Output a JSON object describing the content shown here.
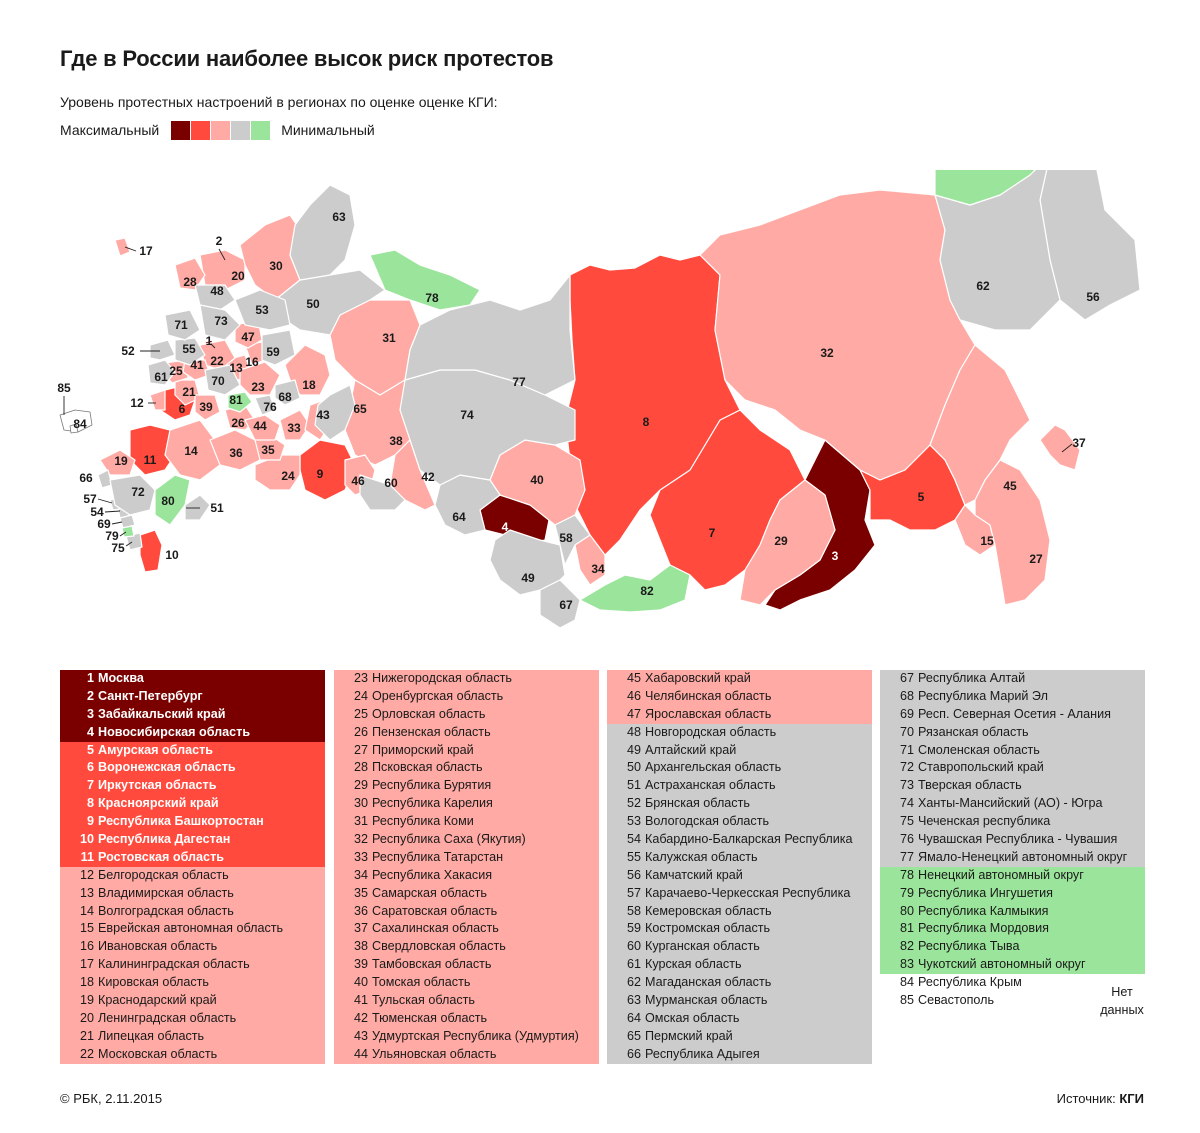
{
  "title": "Где в России наиболее высок риск протестов",
  "subtitle": "Уровень протестных настроений в регионах по оценке оценке КГИ:",
  "legend": {
    "max_label": "Максимальный",
    "min_label": "Минимальный",
    "colors": [
      "#7a0000",
      "#ff4a3d",
      "#ffaaa4",
      "#cccccc",
      "#9be49b"
    ]
  },
  "colors": {
    "level1": "#7a0000",
    "level2": "#ff4a3d",
    "level3": "#ffaaa4",
    "level4": "#cccccc",
    "level5": "#9be49b",
    "nodata": "#ffffff"
  },
  "regions": [
    {
      "num": "1",
      "name": "Москва",
      "level": 1
    },
    {
      "num": "2",
      "name": "Санкт-Петербург",
      "level": 1
    },
    {
      "num": "3",
      "name": "Забайкальский край",
      "level": 1
    },
    {
      "num": "4",
      "name": "Новосибирская область",
      "level": 1
    },
    {
      "num": "5",
      "name": "Амурская область",
      "level": 2
    },
    {
      "num": "6",
      "name": "Воронежская область",
      "level": 2
    },
    {
      "num": "7",
      "name": "Иркутская область",
      "level": 2
    },
    {
      "num": "8",
      "name": "Красноярский край",
      "level": 2
    },
    {
      "num": "9",
      "name": "Республика Башкортостан",
      "level": 2
    },
    {
      "num": "10",
      "name": "Республика Дагестан",
      "level": 2
    },
    {
      "num": "11",
      "name": "Ростовская область",
      "level": 2
    },
    {
      "num": "12",
      "name": "Белгородская область",
      "level": 3
    },
    {
      "num": "13",
      "name": "Владимирская область",
      "level": 3
    },
    {
      "num": "14",
      "name": "Волгоградская область",
      "level": 3
    },
    {
      "num": "15",
      "name": "Еврейская автономная область",
      "level": 3
    },
    {
      "num": "16",
      "name": "Ивановская область",
      "level": 3
    },
    {
      "num": "17",
      "name": "Калининградская область",
      "level": 3
    },
    {
      "num": "18",
      "name": "Кировская область",
      "level": 3
    },
    {
      "num": "19",
      "name": "Краснодарский край",
      "level": 3
    },
    {
      "num": "20",
      "name": "Ленинградская область",
      "level": 3
    },
    {
      "num": "21",
      "name": "Липецкая область",
      "level": 3
    },
    {
      "num": "22",
      "name": "Московская область",
      "level": 3
    },
    {
      "num": "23",
      "name": "Нижегородская область",
      "level": 3
    },
    {
      "num": "24",
      "name": "Оренбургская область",
      "level": 3
    },
    {
      "num": "25",
      "name": "Орловская область",
      "level": 3
    },
    {
      "num": "26",
      "name": "Пензенская область",
      "level": 3
    },
    {
      "num": "27",
      "name": "Приморский край",
      "level": 3
    },
    {
      "num": "28",
      "name": "Псковская область",
      "level": 3
    },
    {
      "num": "29",
      "name": "Республика Бурятия",
      "level": 3
    },
    {
      "num": "30",
      "name": "Республика Карелия",
      "level": 3
    },
    {
      "num": "31",
      "name": "Республика Коми",
      "level": 3
    },
    {
      "num": "32",
      "name": "Республика Саха (Якутия)",
      "level": 3
    },
    {
      "num": "33",
      "name": "Республика Татарстан",
      "level": 3
    },
    {
      "num": "34",
      "name": "Республика Хакасия",
      "level": 3
    },
    {
      "num": "35",
      "name": "Самарская область",
      "level": 3
    },
    {
      "num": "36",
      "name": "Саратовская область",
      "level": 3
    },
    {
      "num": "37",
      "name": "Сахалинская область",
      "level": 3
    },
    {
      "num": "38",
      "name": "Свердловская область",
      "level": 3
    },
    {
      "num": "39",
      "name": "Тамбовская область",
      "level": 3
    },
    {
      "num": "40",
      "name": "Томская область",
      "level": 3
    },
    {
      "num": "41",
      "name": "Тульская область",
      "level": 3
    },
    {
      "num": "42",
      "name": "Тюменская область",
      "level": 3
    },
    {
      "num": "43",
      "name": "Удмуртская Республика (Удмуртия)",
      "level": 3
    },
    {
      "num": "44",
      "name": "Ульяновская область",
      "level": 3
    },
    {
      "num": "45",
      "name": "Хабаровский край",
      "level": 3
    },
    {
      "num": "46",
      "name": "Челябинская область",
      "level": 3
    },
    {
      "num": "47",
      "name": "Ярославская область",
      "level": 3
    },
    {
      "num": "48",
      "name": "Новгородская область",
      "level": 4
    },
    {
      "num": "49",
      "name": "Алтайский край",
      "level": 4
    },
    {
      "num": "50",
      "name": "Архангельская область",
      "level": 4
    },
    {
      "num": "51",
      "name": "Астраханская область",
      "level": 4
    },
    {
      "num": "52",
      "name": "Брянская область",
      "level": 4
    },
    {
      "num": "53",
      "name": "Вологодская область",
      "level": 4
    },
    {
      "num": "54",
      "name": "Кабардино-Балкарская Республика",
      "level": 4
    },
    {
      "num": "55",
      "name": "Калужская область",
      "level": 4
    },
    {
      "num": "56",
      "name": "Камчатский край",
      "level": 4
    },
    {
      "num": "57",
      "name": "Карачаево-Черкесская Республика",
      "level": 4
    },
    {
      "num": "58",
      "name": "Кемеровская область",
      "level": 4
    },
    {
      "num": "59",
      "name": "Костромская область",
      "level": 4
    },
    {
      "num": "60",
      "name": "Курганская область",
      "level": 4
    },
    {
      "num": "61",
      "name": "Курская область",
      "level": 4
    },
    {
      "num": "62",
      "name": "Магаданская область",
      "level": 4
    },
    {
      "num": "63",
      "name": "Мурманская область",
      "level": 4
    },
    {
      "num": "64",
      "name": "Омская область",
      "level": 4
    },
    {
      "num": "65",
      "name": "Пермский край",
      "level": 4
    },
    {
      "num": "66",
      "name": "Республика Адыгея",
      "level": 4
    },
    {
      "num": "67",
      "name": "Республика Алтай",
      "level": 4
    },
    {
      "num": "68",
      "name": "Республика Марий Эл",
      "level": 4
    },
    {
      "num": "69",
      "name": "Респ. Северная Осетия - Алания",
      "level": 4
    },
    {
      "num": "70",
      "name": "Рязанская область",
      "level": 4
    },
    {
      "num": "71",
      "name": "Смоленская область",
      "level": 4
    },
    {
      "num": "72",
      "name": "Ставропольский край",
      "level": 4
    },
    {
      "num": "73",
      "name": "Тверская область",
      "level": 4
    },
    {
      "num": "74",
      "name": "Ханты-Мансийский (АО)  - Югра",
      "level": 4
    },
    {
      "num": "75",
      "name": "Чеченская республика",
      "level": 4
    },
    {
      "num": "76",
      "name": "Чувашская Республика - Чувашия",
      "level": 4
    },
    {
      "num": "77",
      "name": "Ямало-Ненецкий автономный округ",
      "level": 4
    },
    {
      "num": "78",
      "name": "Ненецкий автономный округ",
      "level": 5
    },
    {
      "num": "79",
      "name": "Республика Ингушетия",
      "level": 5
    },
    {
      "num": "80",
      "name": "Республика Калмыкия",
      "level": 5
    },
    {
      "num": "81",
      "name": "Республика Мордовия",
      "level": 5
    },
    {
      "num": "82",
      "name": "Республика Тыва",
      "level": 5
    },
    {
      "num": "83",
      "name": "Чукотский автономный округ",
      "level": 5
    },
    {
      "num": "84",
      "name": "Республика Крым",
      "level": 0
    },
    {
      "num": "85",
      "name": "Севастополь",
      "level": 0
    }
  ],
  "nodata_label": "Нет данных",
  "footer": {
    "copyright": "© РБК, 2.11.2015",
    "source_prefix": "Источник:",
    "source": "КГИ"
  }
}
